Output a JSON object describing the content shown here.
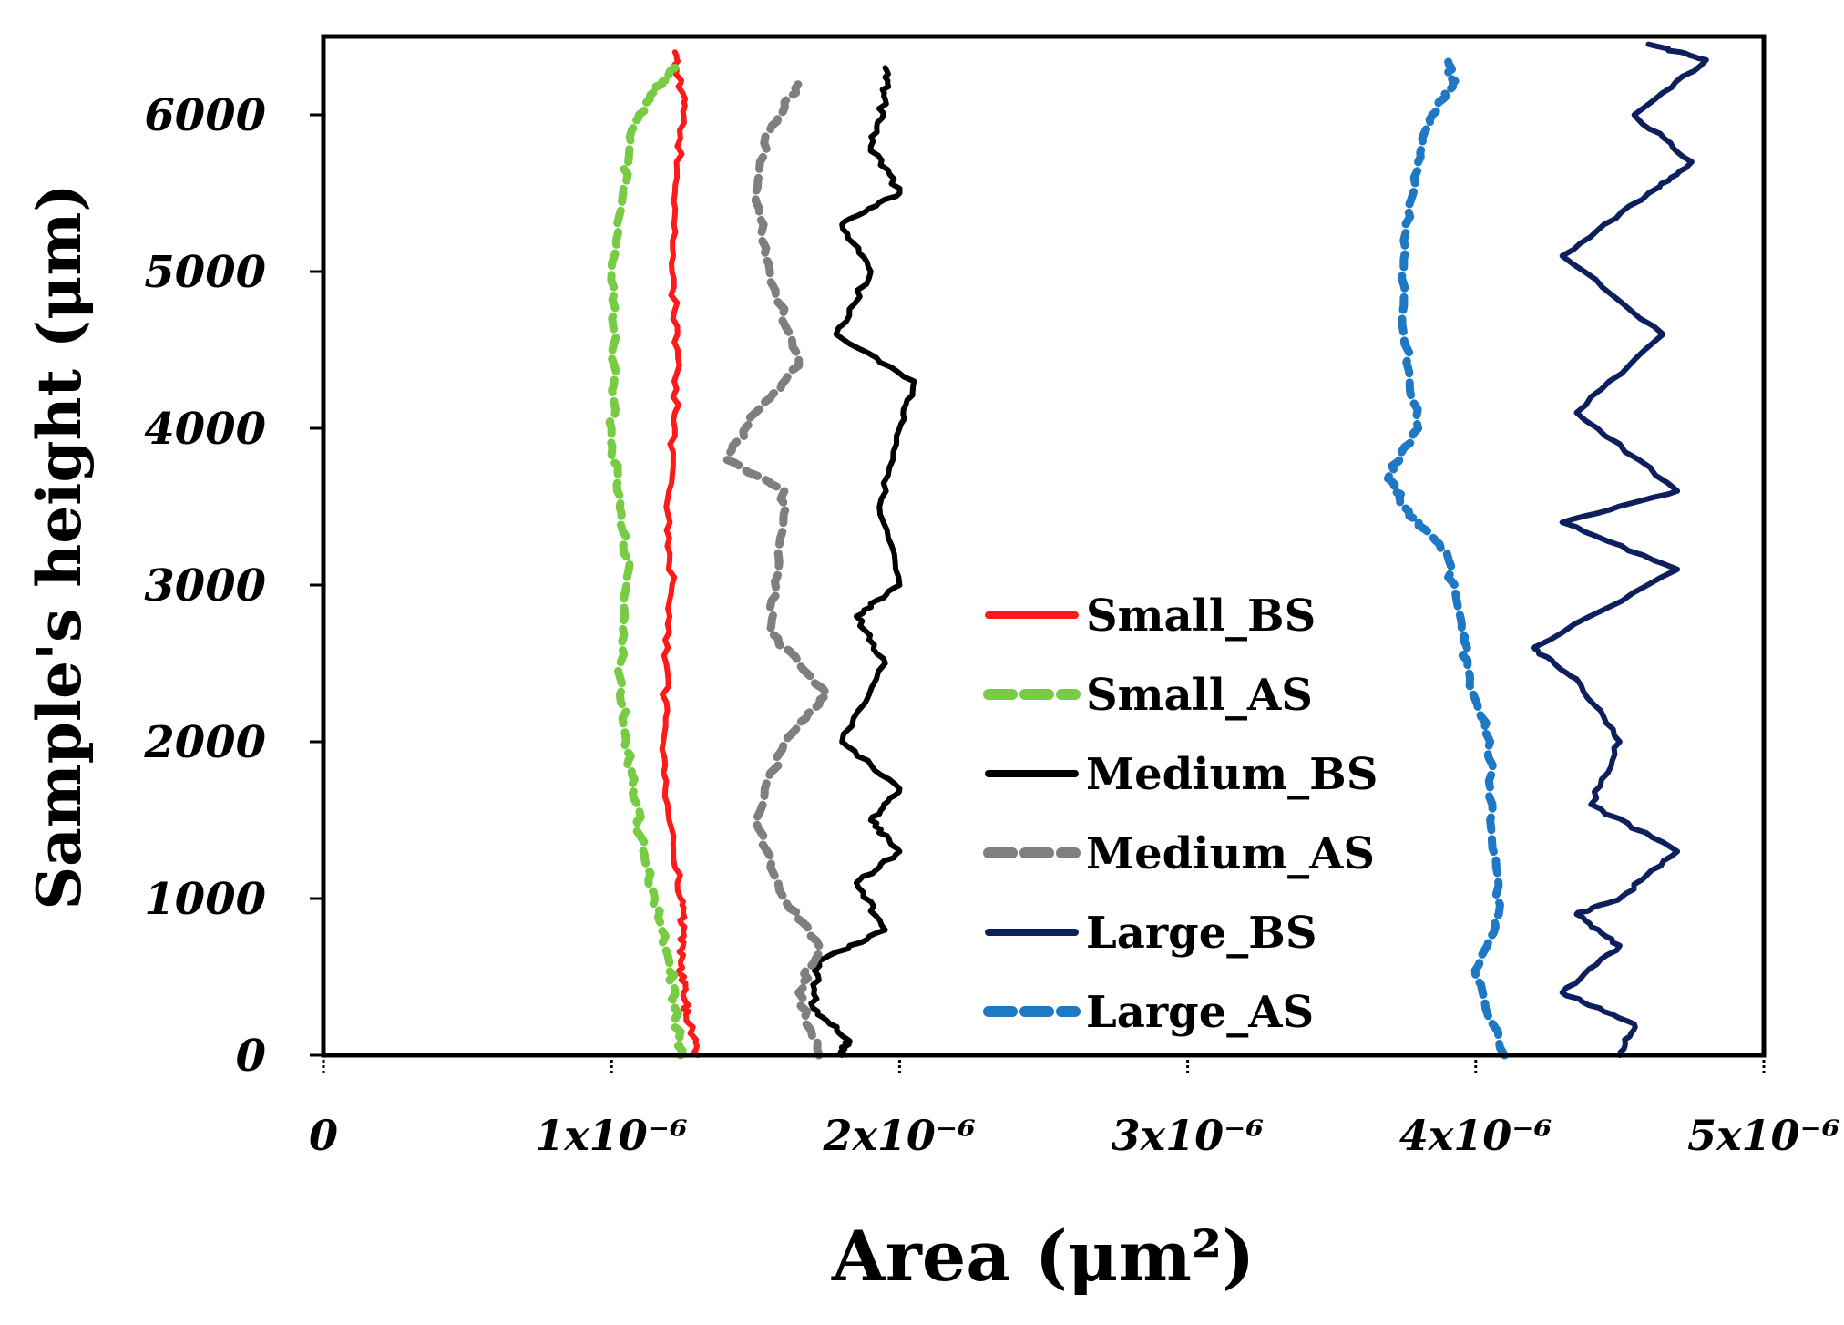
{
  "chart_data": {
    "type": "line",
    "title": "",
    "xlabel": "Area (μm²)",
    "ylabel": "Sample's height (μm)",
    "xlim": [
      0,
      5e-06
    ],
    "ylim": [
      0,
      6500
    ],
    "x_ticks": [
      {
        "value": 0,
        "label": "0"
      },
      {
        "value": 1e-06,
        "label": "1x10⁻⁶"
      },
      {
        "value": 2e-06,
        "label": "2x10⁻⁶"
      },
      {
        "value": 3e-06,
        "label": "3x10⁻⁶"
      },
      {
        "value": 4e-06,
        "label": "4x10⁻⁶"
      },
      {
        "value": 5e-06,
        "label": "5x10⁻⁶"
      }
    ],
    "y_ticks": [
      {
        "value": 0,
        "label": "0"
      },
      {
        "value": 1000,
        "label": "1000"
      },
      {
        "value": 2000,
        "label": "2000"
      },
      {
        "value": 3000,
        "label": "3000"
      },
      {
        "value": 4000,
        "label": "4000"
      },
      {
        "value": 5000,
        "label": "5000"
      },
      {
        "value": 6000,
        "label": "6000"
      }
    ],
    "legend_position": "center-right",
    "series": [
      {
        "name": "Small_BS",
        "color": "#ff1a1a",
        "dash": "solid",
        "points": [
          [
            1.3e-06,
            0
          ],
          [
            1.27e-06,
            200
          ],
          [
            1.25e-06,
            400
          ],
          [
            1.24e-06,
            600
          ],
          [
            1.25e-06,
            800
          ],
          [
            1.24e-06,
            1000
          ],
          [
            1.2e-06,
            1500
          ],
          [
            1.18e-06,
            2000
          ],
          [
            1.19e-06,
            2500
          ],
          [
            1.21e-06,
            3000
          ],
          [
            1.19e-06,
            3500
          ],
          [
            1.22e-06,
            4000
          ],
          [
            1.23e-06,
            4500
          ],
          [
            1.21e-06,
            5000
          ],
          [
            1.22e-06,
            5500
          ],
          [
            1.25e-06,
            6000
          ],
          [
            1.24e-06,
            6200
          ],
          [
            1.22e-06,
            6400
          ]
        ]
      },
      {
        "name": "Small_AS",
        "color": "#77cc44",
        "dash": "dashed",
        "points": [
          [
            1.24e-06,
            0
          ],
          [
            1.22e-06,
            300
          ],
          [
            1.2e-06,
            600
          ],
          [
            1.15e-06,
            1000
          ],
          [
            1.1e-06,
            1400
          ],
          [
            1.08e-06,
            1700
          ],
          [
            1.05e-06,
            2000
          ],
          [
            1.03e-06,
            2500
          ],
          [
            1.06e-06,
            3100
          ],
          [
            1.02e-06,
            3600
          ],
          [
            1e-06,
            4000
          ],
          [
            1.01e-06,
            4400
          ],
          [
            1e-06,
            5000
          ],
          [
            1.04e-06,
            5500
          ],
          [
            1.07e-06,
            5900
          ],
          [
            1.15e-06,
            6150
          ],
          [
            1.22e-06,
            6300
          ]
        ]
      },
      {
        "name": "Medium_BS",
        "color": "#000000",
        "dash": "solid",
        "points": [
          [
            1.8e-06,
            0
          ],
          [
            1.82e-06,
            100
          ],
          [
            1.7e-06,
            300
          ],
          [
            1.72e-06,
            600
          ],
          [
            1.95e-06,
            800
          ],
          [
            1.85e-06,
            1100
          ],
          [
            2e-06,
            1300
          ],
          [
            1.9e-06,
            1500
          ],
          [
            2e-06,
            1700
          ],
          [
            1.8e-06,
            2000
          ],
          [
            1.95e-06,
            2500
          ],
          [
            1.85e-06,
            2800
          ],
          [
            2e-06,
            3000
          ],
          [
            1.93e-06,
            3500
          ],
          [
            2e-06,
            4000
          ],
          [
            2.05e-06,
            4300
          ],
          [
            1.78e-06,
            4600
          ],
          [
            1.9e-06,
            5000
          ],
          [
            1.8e-06,
            5300
          ],
          [
            2e-06,
            5500
          ],
          [
            1.9e-06,
            5800
          ],
          [
            1.95e-06,
            6100
          ],
          [
            1.95e-06,
            6300
          ]
        ]
      },
      {
        "name": "Medium_AS",
        "color": "#7f7f7f",
        "dash": "dashed",
        "points": [
          [
            1.72e-06,
            0
          ],
          [
            1.65e-06,
            400
          ],
          [
            1.72e-06,
            700
          ],
          [
            1.6e-06,
            1000
          ],
          [
            1.5e-06,
            1500
          ],
          [
            1.6e-06,
            2000
          ],
          [
            1.75e-06,
            2300
          ],
          [
            1.55e-06,
            2700
          ],
          [
            1.58e-06,
            3100
          ],
          [
            1.6e-06,
            3600
          ],
          [
            1.4e-06,
            3800
          ],
          [
            1.5e-06,
            4100
          ],
          [
            1.65e-06,
            4400
          ],
          [
            1.55e-06,
            5000
          ],
          [
            1.5e-06,
            5500
          ],
          [
            1.55e-06,
            5900
          ],
          [
            1.65e-06,
            6200
          ]
        ]
      },
      {
        "name": "Large_BS",
        "color": "#0d1f5c",
        "dash": "solid",
        "points": [
          [
            4.5e-06,
            0
          ],
          [
            4.55e-06,
            200
          ],
          [
            4.3e-06,
            400
          ],
          [
            4.5e-06,
            700
          ],
          [
            4.35e-06,
            900
          ],
          [
            4.5e-06,
            1000
          ],
          [
            4.7e-06,
            1300
          ],
          [
            4.4e-06,
            1600
          ],
          [
            4.5e-06,
            2000
          ],
          [
            4.35e-06,
            2400
          ],
          [
            4.2e-06,
            2600
          ],
          [
            4.7e-06,
            3100
          ],
          [
            4.3e-06,
            3400
          ],
          [
            4.7e-06,
            3600
          ],
          [
            4.35e-06,
            4100
          ],
          [
            4.65e-06,
            4600
          ],
          [
            4.3e-06,
            5100
          ],
          [
            4.6e-06,
            5500
          ],
          [
            4.75e-06,
            5700
          ],
          [
            4.55e-06,
            6000
          ],
          [
            4.8e-06,
            6350
          ],
          [
            4.6e-06,
            6450
          ]
        ]
      },
      {
        "name": "Large_AS",
        "color": "#1f78c4",
        "dash": "dashed",
        "points": [
          [
            4.1e-06,
            0
          ],
          [
            4e-06,
            500
          ],
          [
            4.08e-06,
            900
          ],
          [
            4.05e-06,
            1500
          ],
          [
            4.05e-06,
            2000
          ],
          [
            3.98e-06,
            2400
          ],
          [
            3.95e-06,
            2700
          ],
          [
            3.9e-06,
            3200
          ],
          [
            3.75e-06,
            3500
          ],
          [
            3.7e-06,
            3700
          ],
          [
            3.8e-06,
            4000
          ],
          [
            3.75e-06,
            4600
          ],
          [
            3.75e-06,
            5200
          ],
          [
            3.8e-06,
            5700
          ],
          [
            3.85e-06,
            6000
          ],
          [
            3.92e-06,
            6200
          ],
          [
            3.9e-06,
            6350
          ]
        ]
      }
    ]
  }
}
